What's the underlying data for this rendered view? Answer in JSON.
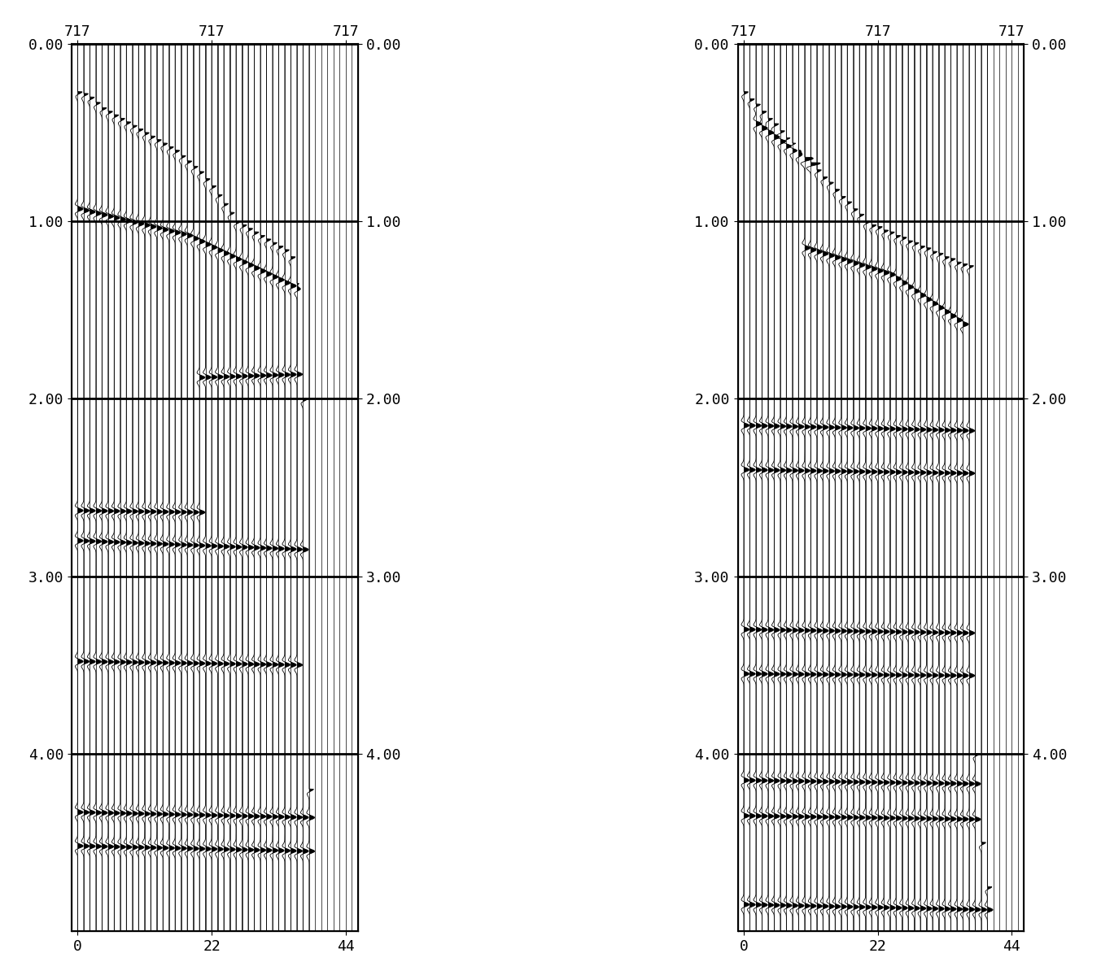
{
  "chart_data": [
    {
      "type": "wiggle",
      "x": [
        0,
        1,
        2,
        3,
        4,
        5,
        6,
        7,
        8,
        9,
        10,
        11,
        12,
        13,
        14,
        15,
        16,
        17,
        18,
        19,
        20,
        21,
        22,
        23,
        24,
        25,
        26,
        27,
        28,
        29,
        30,
        31,
        32,
        33,
        34,
        35,
        36,
        37,
        38,
        39,
        40,
        41,
        42,
        43,
        44,
        45,
        46
      ],
      "first_break": [
        0.27,
        0.28,
        0.3,
        0.33,
        0.36,
        0.38,
        0.4,
        0.42,
        0.44,
        0.46,
        0.48,
        0.5,
        0.52,
        0.54,
        0.56,
        0.58,
        0.6,
        0.63,
        0.66,
        0.69,
        0.72,
        0.76,
        0.8,
        0.85,
        0.9,
        0.95,
        1.0,
        1.02,
        1.04,
        1.06,
        1.08,
        1.1,
        1.12,
        1.14,
        1.16,
        1.2,
        1.35,
        2.0,
        4.2,
        null,
        null,
        null,
        null,
        null,
        null,
        null,
        null
      ],
      "events": [
        {
          "x": [
            0,
            18,
            36
          ],
          "t": [
            0.93,
            1.08,
            1.38
          ]
        },
        {
          "x": [
            20,
            38
          ],
          "t": [
            1.88,
            1.86
          ]
        },
        {
          "x": [
            0,
            20
          ],
          "t": [
            2.63,
            2.64
          ]
        },
        {
          "x": [
            0,
            37
          ],
          "t": [
            2.8,
            2.85
          ]
        },
        {
          "x": [
            0,
            36
          ],
          "t": [
            3.48,
            3.5
          ]
        },
        {
          "x": [
            0,
            38
          ],
          "t": [
            4.33,
            4.36
          ]
        },
        {
          "x": [
            0,
            38
          ],
          "t": [
            4.52,
            4.55
          ]
        }
      ],
      "xlim": [
        -1,
        46
      ],
      "xticks": [
        0,
        22,
        44
      ],
      "x2lim": [
        -1,
        46
      ],
      "x2ticks": [
        {
          "value": 0,
          "label": "717"
        },
        {
          "value": 22,
          "label": "717"
        },
        {
          "value": 44,
          "label": "717"
        }
      ],
      "ylim": [
        0,
        5.0
      ],
      "yticks": [
        {
          "value": 0,
          "label": "0.00"
        },
        {
          "value": 1,
          "label": "1.00"
        },
        {
          "value": 2,
          "label": "2.00"
        },
        {
          "value": 3,
          "label": "3.00"
        },
        {
          "value": 4,
          "label": "4.00"
        }
      ],
      "y2lim": [
        0,
        5.0
      ],
      "y2ticks": [
        {
          "value": 0,
          "label": "0.00"
        },
        {
          "value": 1,
          "label": "1.00"
        },
        {
          "value": 2,
          "label": "2.00"
        },
        {
          "value": 3,
          "label": "3.00"
        },
        {
          "value": 4,
          "label": "4.00"
        }
      ],
      "grid": true,
      "color": "#000000"
    },
    {
      "type": "wiggle",
      "x": [
        0,
        1,
        2,
        3,
        4,
        5,
        6,
        7,
        8,
        9,
        10,
        11,
        12,
        13,
        14,
        15,
        16,
        17,
        18,
        19,
        20,
        21,
        22,
        23,
        24,
        25,
        26,
        27,
        28,
        29,
        30,
        31,
        32,
        33,
        34,
        35,
        36,
        37,
        38,
        39,
        40,
        41,
        42,
        43,
        44,
        45,
        46
      ],
      "first_break": [
        0.27,
        0.31,
        0.34,
        0.38,
        0.42,
        0.45,
        0.49,
        0.53,
        0.56,
        0.6,
        0.64,
        0.67,
        0.71,
        0.75,
        0.78,
        0.82,
        0.86,
        0.89,
        0.93,
        0.96,
        1.0,
        1.02,
        1.03,
        1.05,
        1.06,
        1.08,
        1.09,
        1.11,
        1.12,
        1.14,
        1.15,
        1.17,
        1.18,
        1.2,
        1.21,
        1.23,
        1.24,
        1.25,
        4.0,
        4.5,
        4.75,
        null,
        null,
        null,
        null,
        null,
        null
      ],
      "events": [
        {
          "x": [
            2,
            12,
            22
          ],
          "t": [
            0.45,
            0.7,
            1.0
          ]
        },
        {
          "x": [
            10,
            24,
            36
          ],
          "t": [
            1.15,
            1.3,
            1.58
          ]
        },
        {
          "x": [
            0,
            37
          ],
          "t": [
            2.15,
            2.18
          ]
        },
        {
          "x": [
            0,
            37
          ],
          "t": [
            2.4,
            2.42
          ]
        },
        {
          "x": [
            0,
            37
          ],
          "t": [
            3.3,
            3.32
          ]
        },
        {
          "x": [
            0,
            37
          ],
          "t": [
            3.55,
            3.56
          ]
        },
        {
          "x": [
            0,
            38
          ],
          "t": [
            4.15,
            4.17
          ]
        },
        {
          "x": [
            0,
            38
          ],
          "t": [
            4.35,
            4.37
          ]
        },
        {
          "x": [
            0,
            40
          ],
          "t": [
            4.85,
            4.88
          ]
        }
      ],
      "xlim": [
        -1,
        46
      ],
      "xticks": [
        0,
        22,
        44
      ],
      "x2lim": [
        -1,
        46
      ],
      "x2ticks": [
        {
          "value": 0,
          "label": "717"
        },
        {
          "value": 22,
          "label": "717"
        },
        {
          "value": 44,
          "label": "717"
        }
      ],
      "ylim": [
        0,
        5.0
      ],
      "yticks": [
        {
          "value": 0,
          "label": "0.00"
        },
        {
          "value": 1,
          "label": "1.00"
        },
        {
          "value": 2,
          "label": "2.00"
        },
        {
          "value": 3,
          "label": "3.00"
        },
        {
          "value": 4,
          "label": "4.00"
        }
      ],
      "y2lim": [
        0,
        5.0
      ],
      "y2ticks": [
        {
          "value": 0,
          "label": "0.00"
        },
        {
          "value": 1,
          "label": "1.00"
        },
        {
          "value": 2,
          "label": "2.00"
        },
        {
          "value": 3,
          "label": "3.00"
        },
        {
          "value": 4,
          "label": "4.00"
        }
      ],
      "grid": true,
      "color": "#000000"
    }
  ]
}
